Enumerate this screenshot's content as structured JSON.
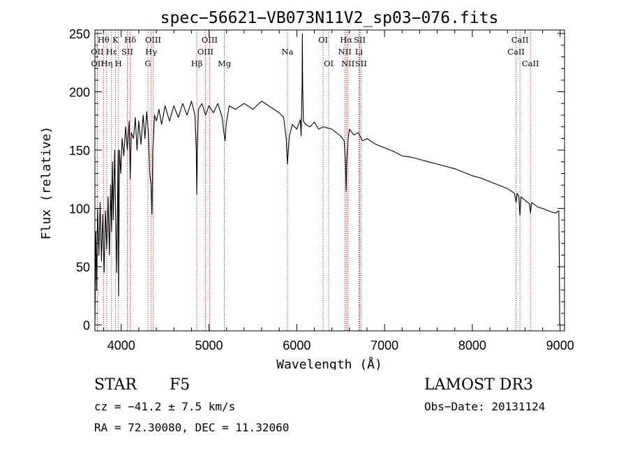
{
  "chart_data": {
    "type": "line",
    "title": "spec−56621−VB073N11V2_sp03−076.fits",
    "xlabel": "Wavelength (Å)",
    "ylabel": "Flux (relative)",
    "xlim": [
      3700,
      9050
    ],
    "ylim": [
      -5,
      253
    ],
    "xticks": [
      4000,
      5000,
      6000,
      7000,
      8000,
      9000
    ],
    "yticks": [
      0,
      50,
      100,
      150,
      200,
      250
    ],
    "grid": false,
    "series": [
      {
        "name": "flux",
        "points": [
          [
            3700,
            0
          ],
          [
            3710,
            80
          ],
          [
            3720,
            30
          ],
          [
            3730,
            100
          ],
          [
            3745,
            60
          ],
          [
            3760,
            105
          ],
          [
            3775,
            55
          ],
          [
            3790,
            95
          ],
          [
            3805,
            45
          ],
          [
            3820,
            98
          ],
          [
            3835,
            65
          ],
          [
            3850,
            110
          ],
          [
            3865,
            60
          ],
          [
            3880,
            120
          ],
          [
            3890,
            80
          ],
          [
            3900,
            140
          ],
          [
            3910,
            90
          ],
          [
            3925,
            150
          ],
          [
            3935,
            100
          ],
          [
            3950,
            45
          ],
          [
            3965,
            150
          ],
          [
            3970,
            25
          ],
          [
            3980,
            150
          ],
          [
            3995,
            130
          ],
          [
            4010,
            160
          ],
          [
            4030,
            145
          ],
          [
            4050,
            170
          ],
          [
            4070,
            150
          ],
          [
            4090,
            175
          ],
          [
            4102,
            125
          ],
          [
            4115,
            165
          ],
          [
            4140,
            160
          ],
          [
            4160,
            178
          ],
          [
            4180,
            150
          ],
          [
            4200,
            175
          ],
          [
            4225,
            155
          ],
          [
            4250,
            180
          ],
          [
            4270,
            160
          ],
          [
            4290,
            183
          ],
          [
            4310,
            165
          ],
          [
            4325,
            130
          ],
          [
            4340,
            120
          ],
          [
            4350,
            95
          ],
          [
            4360,
            150
          ],
          [
            4380,
            180
          ],
          [
            4400,
            175
          ],
          [
            4430,
            185
          ],
          [
            4460,
            172
          ],
          [
            4500,
            188
          ],
          [
            4550,
            175
          ],
          [
            4600,
            188
          ],
          [
            4650,
            178
          ],
          [
            4700,
            190
          ],
          [
            4750,
            180
          ],
          [
            4800,
            192
          ],
          [
            4840,
            180
          ],
          [
            4855,
            150
          ],
          [
            4861,
            112
          ],
          [
            4868,
            155
          ],
          [
            4880,
            185
          ],
          [
            4920,
            190
          ],
          [
            4960,
            180
          ],
          [
            5000,
            188
          ],
          [
            5050,
            182
          ],
          [
            5100,
            190
          ],
          [
            5150,
            178
          ],
          [
            5170,
            165
          ],
          [
            5183,
            158
          ],
          [
            5195,
            172
          ],
          [
            5230,
            188
          ],
          [
            5300,
            185
          ],
          [
            5400,
            190
          ],
          [
            5500,
            185
          ],
          [
            5600,
            192
          ],
          [
            5700,
            187
          ],
          [
            5800,
            182
          ],
          [
            5850,
            178
          ],
          [
            5880,
            160
          ],
          [
            5893,
            138
          ],
          [
            5900,
            145
          ],
          [
            5915,
            162
          ],
          [
            5950,
            172
          ],
          [
            6000,
            168
          ],
          [
            6040,
            176
          ],
          [
            6050,
            162
          ],
          [
            6060,
            205
          ],
          [
            6063,
            250
          ],
          [
            6067,
            205
          ],
          [
            6075,
            175
          ],
          [
            6100,
            172
          ],
          [
            6150,
            170
          ],
          [
            6200,
            174
          ],
          [
            6250,
            168
          ],
          [
            6300,
            170
          ],
          [
            6400,
            168
          ],
          [
            6450,
            165
          ],
          [
            6500,
            162
          ],
          [
            6540,
            158
          ],
          [
            6555,
            138
          ],
          [
            6563,
            115
          ],
          [
            6570,
            140
          ],
          [
            6585,
            160
          ],
          [
            6600,
            168
          ],
          [
            6650,
            163
          ],
          [
            6700,
            165
          ],
          [
            6750,
            158
          ],
          [
            6800,
            160
          ],
          [
            6900,
            155
          ],
          [
            7000,
            152
          ],
          [
            7100,
            149
          ],
          [
            7200,
            145
          ],
          [
            7300,
            144
          ],
          [
            7400,
            142
          ],
          [
            7500,
            140
          ],
          [
            7600,
            138
          ],
          [
            7700,
            136
          ],
          [
            7800,
            134
          ],
          [
            7900,
            131
          ],
          [
            8000,
            128
          ],
          [
            8100,
            126
          ],
          [
            8200,
            123
          ],
          [
            8300,
            120
          ],
          [
            8400,
            117
          ],
          [
            8480,
            113
          ],
          [
            8498,
            105
          ],
          [
            8510,
            113
          ],
          [
            8530,
            110
          ],
          [
            8542,
            94
          ],
          [
            8555,
            110
          ],
          [
            8600,
            107
          ],
          [
            8650,
            104
          ],
          [
            8662,
            96
          ],
          [
            8675,
            105
          ],
          [
            8750,
            101
          ],
          [
            8800,
            100
          ],
          [
            8900,
            97
          ],
          [
            8950,
            96
          ],
          [
            8985,
            98
          ],
          [
            8992,
            50
          ],
          [
            8995,
            0
          ]
        ]
      }
    ],
    "lines": [
      {
        "label": "Hθ",
        "wavelength": 3798,
        "row": 1
      },
      {
        "label": "OII",
        "wavelength": 3727,
        "row": 2
      },
      {
        "label": "OII",
        "wavelength": 3729,
        "row": 3
      },
      {
        "label": "Hη",
        "wavelength": 3835,
        "row": 3
      },
      {
        "label": "K",
        "wavelength": 3934,
        "row": 1
      },
      {
        "label": "Hε",
        "wavelength": 3889,
        "row": 2
      },
      {
        "label": "H",
        "wavelength": 3968,
        "row": 3
      },
      {
        "label": "Hδ",
        "wavelength": 4102,
        "row": 1
      },
      {
        "label": "SII",
        "wavelength": 4070,
        "row": 2
      },
      {
        "label": "OIII",
        "wavelength": 4363,
        "row": 1
      },
      {
        "label": "Hγ",
        "wavelength": 4341,
        "row": 2
      },
      {
        "label": "G",
        "wavelength": 4304,
        "row": 3
      },
      {
        "label": "Hβ",
        "wavelength": 4861,
        "row": 3
      },
      {
        "label": "OIII",
        "wavelength": 5007,
        "row": 1
      },
      {
        "label": "OIII",
        "wavelength": 4959,
        "row": 2
      },
      {
        "label": "Mg",
        "wavelength": 5175,
        "row": 3
      },
      {
        "label": "Na",
        "wavelength": 5894,
        "row": 2
      },
      {
        "label": "OI",
        "wavelength": 6300,
        "row": 1
      },
      {
        "label": "OI",
        "wavelength": 6364,
        "row": 3
      },
      {
        "label": "Hα",
        "wavelength": 6563,
        "row": 1
      },
      {
        "label": "NII",
        "wavelength": 6548,
        "row": 2
      },
      {
        "label": "NII",
        "wavelength": 6583,
        "row": 3
      },
      {
        "label": "SII",
        "wavelength": 6717,
        "row": 1
      },
      {
        "label": "Li",
        "wavelength": 6708,
        "row": 2
      },
      {
        "label": "SII",
        "wavelength": 6731,
        "row": 3
      },
      {
        "label": "CaII",
        "wavelength": 8542,
        "row": 1
      },
      {
        "label": "CaII",
        "wavelength": 8498,
        "row": 2
      },
      {
        "label": "CaII",
        "wavelength": 8662,
        "row": 3
      }
    ]
  },
  "info": {
    "class": "STAR",
    "subclass": "F5",
    "survey": "LAMOST DR3",
    "redshift": "cz = −41.2 ± 7.5 km/s",
    "obs_date": "Obs−Date: 20131124",
    "coords": "RA =  72.30080, DEC =  11.32060"
  }
}
